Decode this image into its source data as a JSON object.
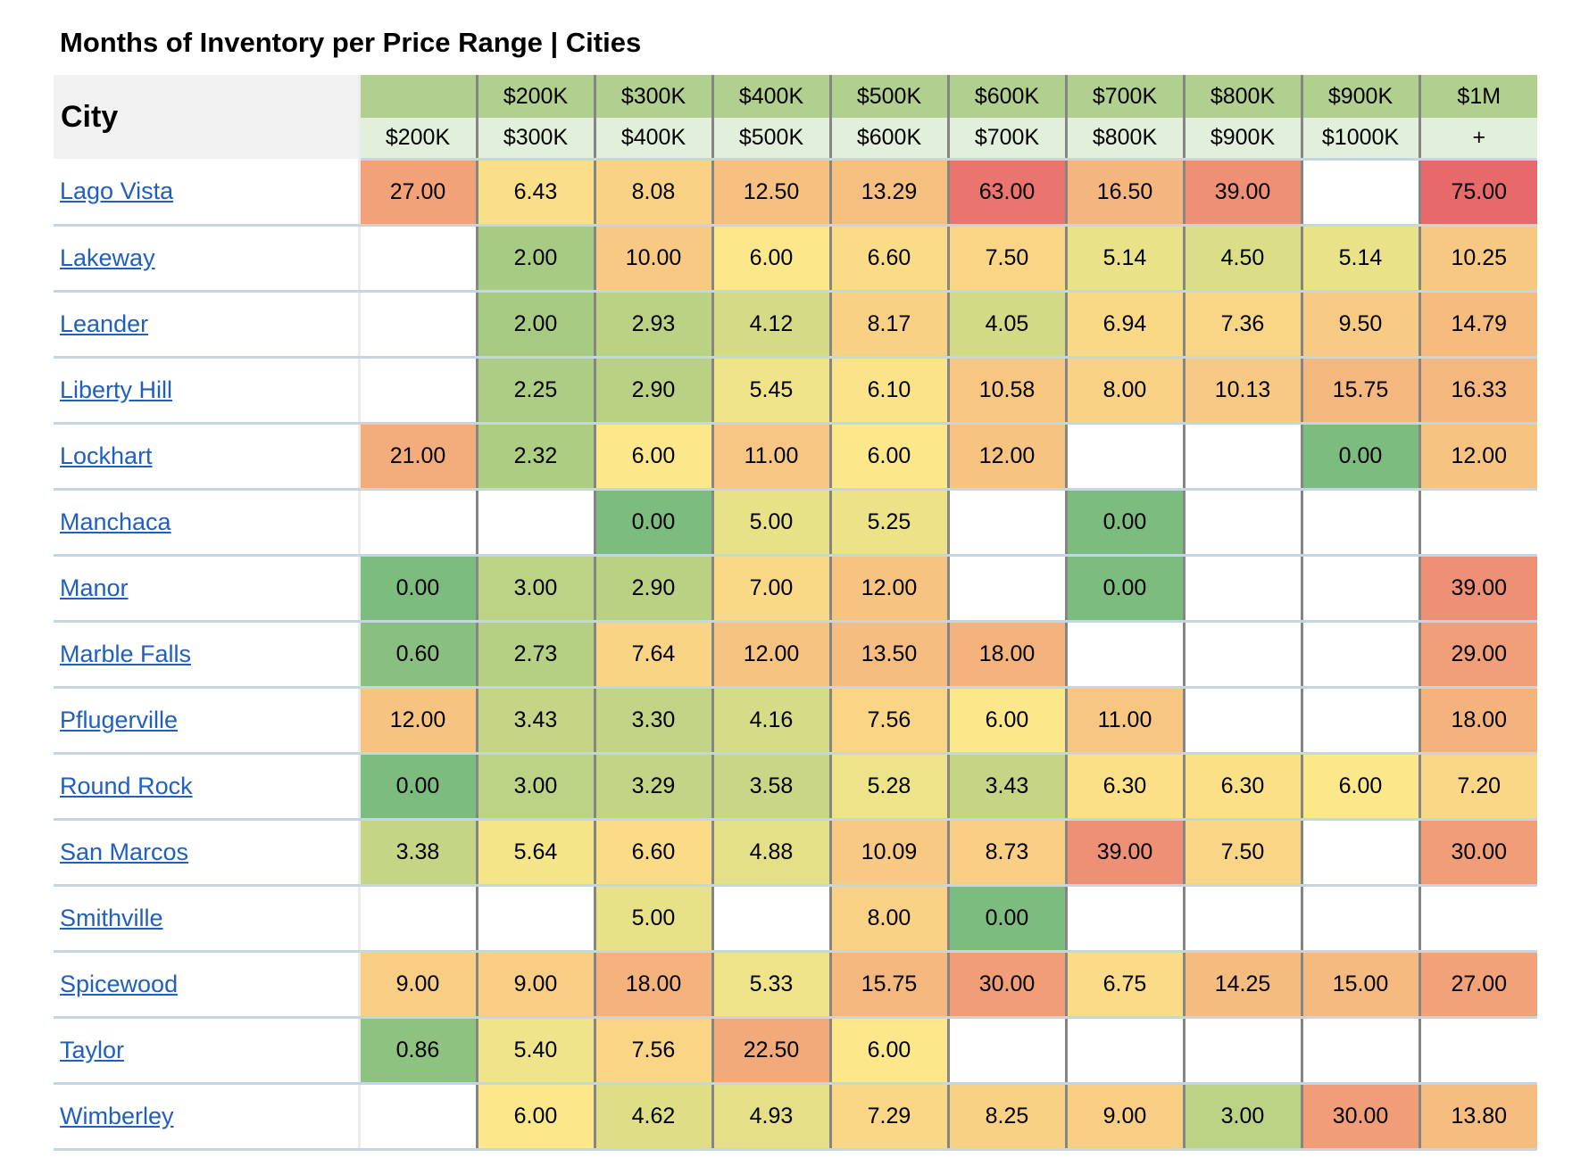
{
  "title": "Months of Inventory per Price Range | Cities",
  "chart_data": {
    "type": "heatmap",
    "title": "Months of Inventory per Price Range | Cities",
    "row_header": "City",
    "column_headers": [
      {
        "top": "",
        "bottom": "$200K"
      },
      {
        "top": "$200K",
        "bottom": "$300K"
      },
      {
        "top": "$300K",
        "bottom": "$400K"
      },
      {
        "top": "$400K",
        "bottom": "$500K"
      },
      {
        "top": "$500K",
        "bottom": "$600K"
      },
      {
        "top": "$600K",
        "bottom": "$700K"
      },
      {
        "top": "$700K",
        "bottom": "$800K"
      },
      {
        "top": "$800K",
        "bottom": "$900K"
      },
      {
        "top": "$900K",
        "bottom": "$1000K"
      },
      {
        "top": "$1M",
        "bottom": "+"
      }
    ],
    "rows": [
      {
        "city": "Lago Vista",
        "values": [
          "27.00",
          "6.43",
          "8.08",
          "12.50",
          "13.29",
          "63.00",
          "16.50",
          "39.00",
          null,
          "75.00"
        ]
      },
      {
        "city": "Lakeway",
        "values": [
          null,
          "2.00",
          "10.00",
          "6.00",
          "6.60",
          "7.50",
          "5.14",
          "4.50",
          "5.14",
          "10.25"
        ]
      },
      {
        "city": "Leander",
        "values": [
          null,
          "2.00",
          "2.93",
          "4.12",
          "8.17",
          "4.05",
          "6.94",
          "7.36",
          "9.50",
          "14.79"
        ]
      },
      {
        "city": "Liberty Hill",
        "values": [
          null,
          "2.25",
          "2.90",
          "5.45",
          "6.10",
          "10.58",
          "8.00",
          "10.13",
          "15.75",
          "16.33"
        ]
      },
      {
        "city": "Lockhart",
        "values": [
          "21.00",
          "2.32",
          "6.00",
          "11.00",
          "6.00",
          "12.00",
          null,
          null,
          "0.00",
          "12.00"
        ]
      },
      {
        "city": "Manchaca",
        "values": [
          null,
          null,
          "0.00",
          "5.00",
          "5.25",
          null,
          "0.00",
          null,
          null,
          null
        ]
      },
      {
        "city": "Manor",
        "values": [
          "0.00",
          "3.00",
          "2.90",
          "7.00",
          "12.00",
          null,
          "0.00",
          null,
          null,
          "39.00"
        ]
      },
      {
        "city": "Marble Falls",
        "values": [
          "0.60",
          "2.73",
          "7.64",
          "12.00",
          "13.50",
          "18.00",
          null,
          null,
          null,
          "29.00"
        ]
      },
      {
        "city": "Pflugerville",
        "values": [
          "12.00",
          "3.43",
          "3.30",
          "4.16",
          "7.56",
          "6.00",
          "11.00",
          null,
          null,
          "18.00"
        ]
      },
      {
        "city": "Round Rock",
        "values": [
          "0.00",
          "3.00",
          "3.29",
          "3.58",
          "5.28",
          "3.43",
          "6.30",
          "6.30",
          "6.00",
          "7.20"
        ]
      },
      {
        "city": "San Marcos",
        "values": [
          "3.38",
          "5.64",
          "6.60",
          "4.88",
          "10.09",
          "8.73",
          "39.00",
          "7.50",
          null,
          "30.00"
        ]
      },
      {
        "city": "Smithville",
        "values": [
          null,
          null,
          "5.00",
          null,
          "8.00",
          "0.00",
          null,
          null,
          null,
          null
        ]
      },
      {
        "city": "Spicewood",
        "values": [
          "9.00",
          "9.00",
          "18.00",
          "5.33",
          "15.75",
          "30.00",
          "6.75",
          "14.25",
          "15.00",
          "27.00"
        ]
      },
      {
        "city": "Taylor",
        "values": [
          "0.86",
          "5.40",
          "7.56",
          "22.50",
          "6.00",
          null,
          null,
          null,
          null,
          null
        ]
      },
      {
        "city": "Wimberley",
        "values": [
          null,
          "6.00",
          "4.62",
          "4.93",
          "7.29",
          "8.25",
          "9.00",
          "3.00",
          "30.00",
          "13.80"
        ]
      }
    ],
    "color_scale": {
      "low": "#7cbc7e",
      "mid": "#fce88a",
      "high": "#e8696b"
    }
  }
}
